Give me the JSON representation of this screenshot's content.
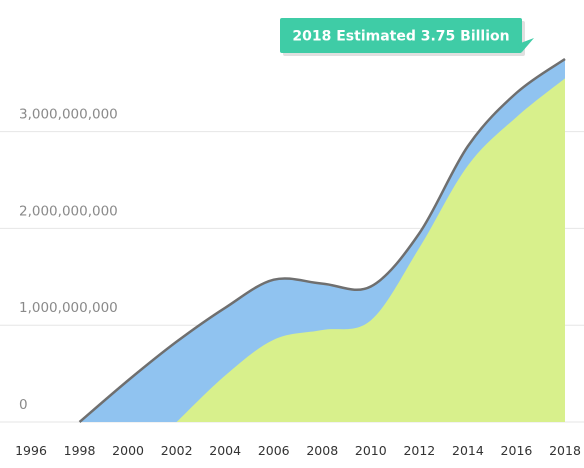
{
  "chart_data": {
    "type": "area",
    "x": [
      1998,
      2000,
      2002,
      2004,
      2006,
      2008,
      2010,
      2012,
      2014,
      2016,
      2018
    ],
    "series": [
      {
        "values": [
          0,
          0,
          0,
          480000000,
          850000000,
          950000000,
          1050000000,
          1800000000,
          2650000000,
          3150000000,
          3550000000
        ],
        "color": "#d8f08c"
      },
      {
        "values": [
          0,
          430000000,
          830000000,
          1180000000,
          1470000000,
          1430000000,
          1400000000,
          1950000000,
          2850000000,
          3400000000,
          3750000000
        ],
        "color": "#90c3f0"
      }
    ],
    "total_line_color": "#6f6f6f",
    "xlim": [
      1996,
      2018
    ],
    "ylim": [
      0,
      3750000000
    ],
    "yticks": [
      0,
      1000000000,
      2000000000,
      3000000000
    ],
    "ytick_labels": [
      "0",
      "1,000,000,000",
      "2,000,000,000",
      "3,000,000,000"
    ],
    "xtick_labels": [
      "1996",
      "1998",
      "2000",
      "2002",
      "2004",
      "2006",
      "2008",
      "2010",
      "2012",
      "2014",
      "2016",
      "2018"
    ],
    "grid": true,
    "annotation": {
      "text": "2018 Estimated 3.75 Billion",
      "color": "#3fcca6"
    }
  }
}
